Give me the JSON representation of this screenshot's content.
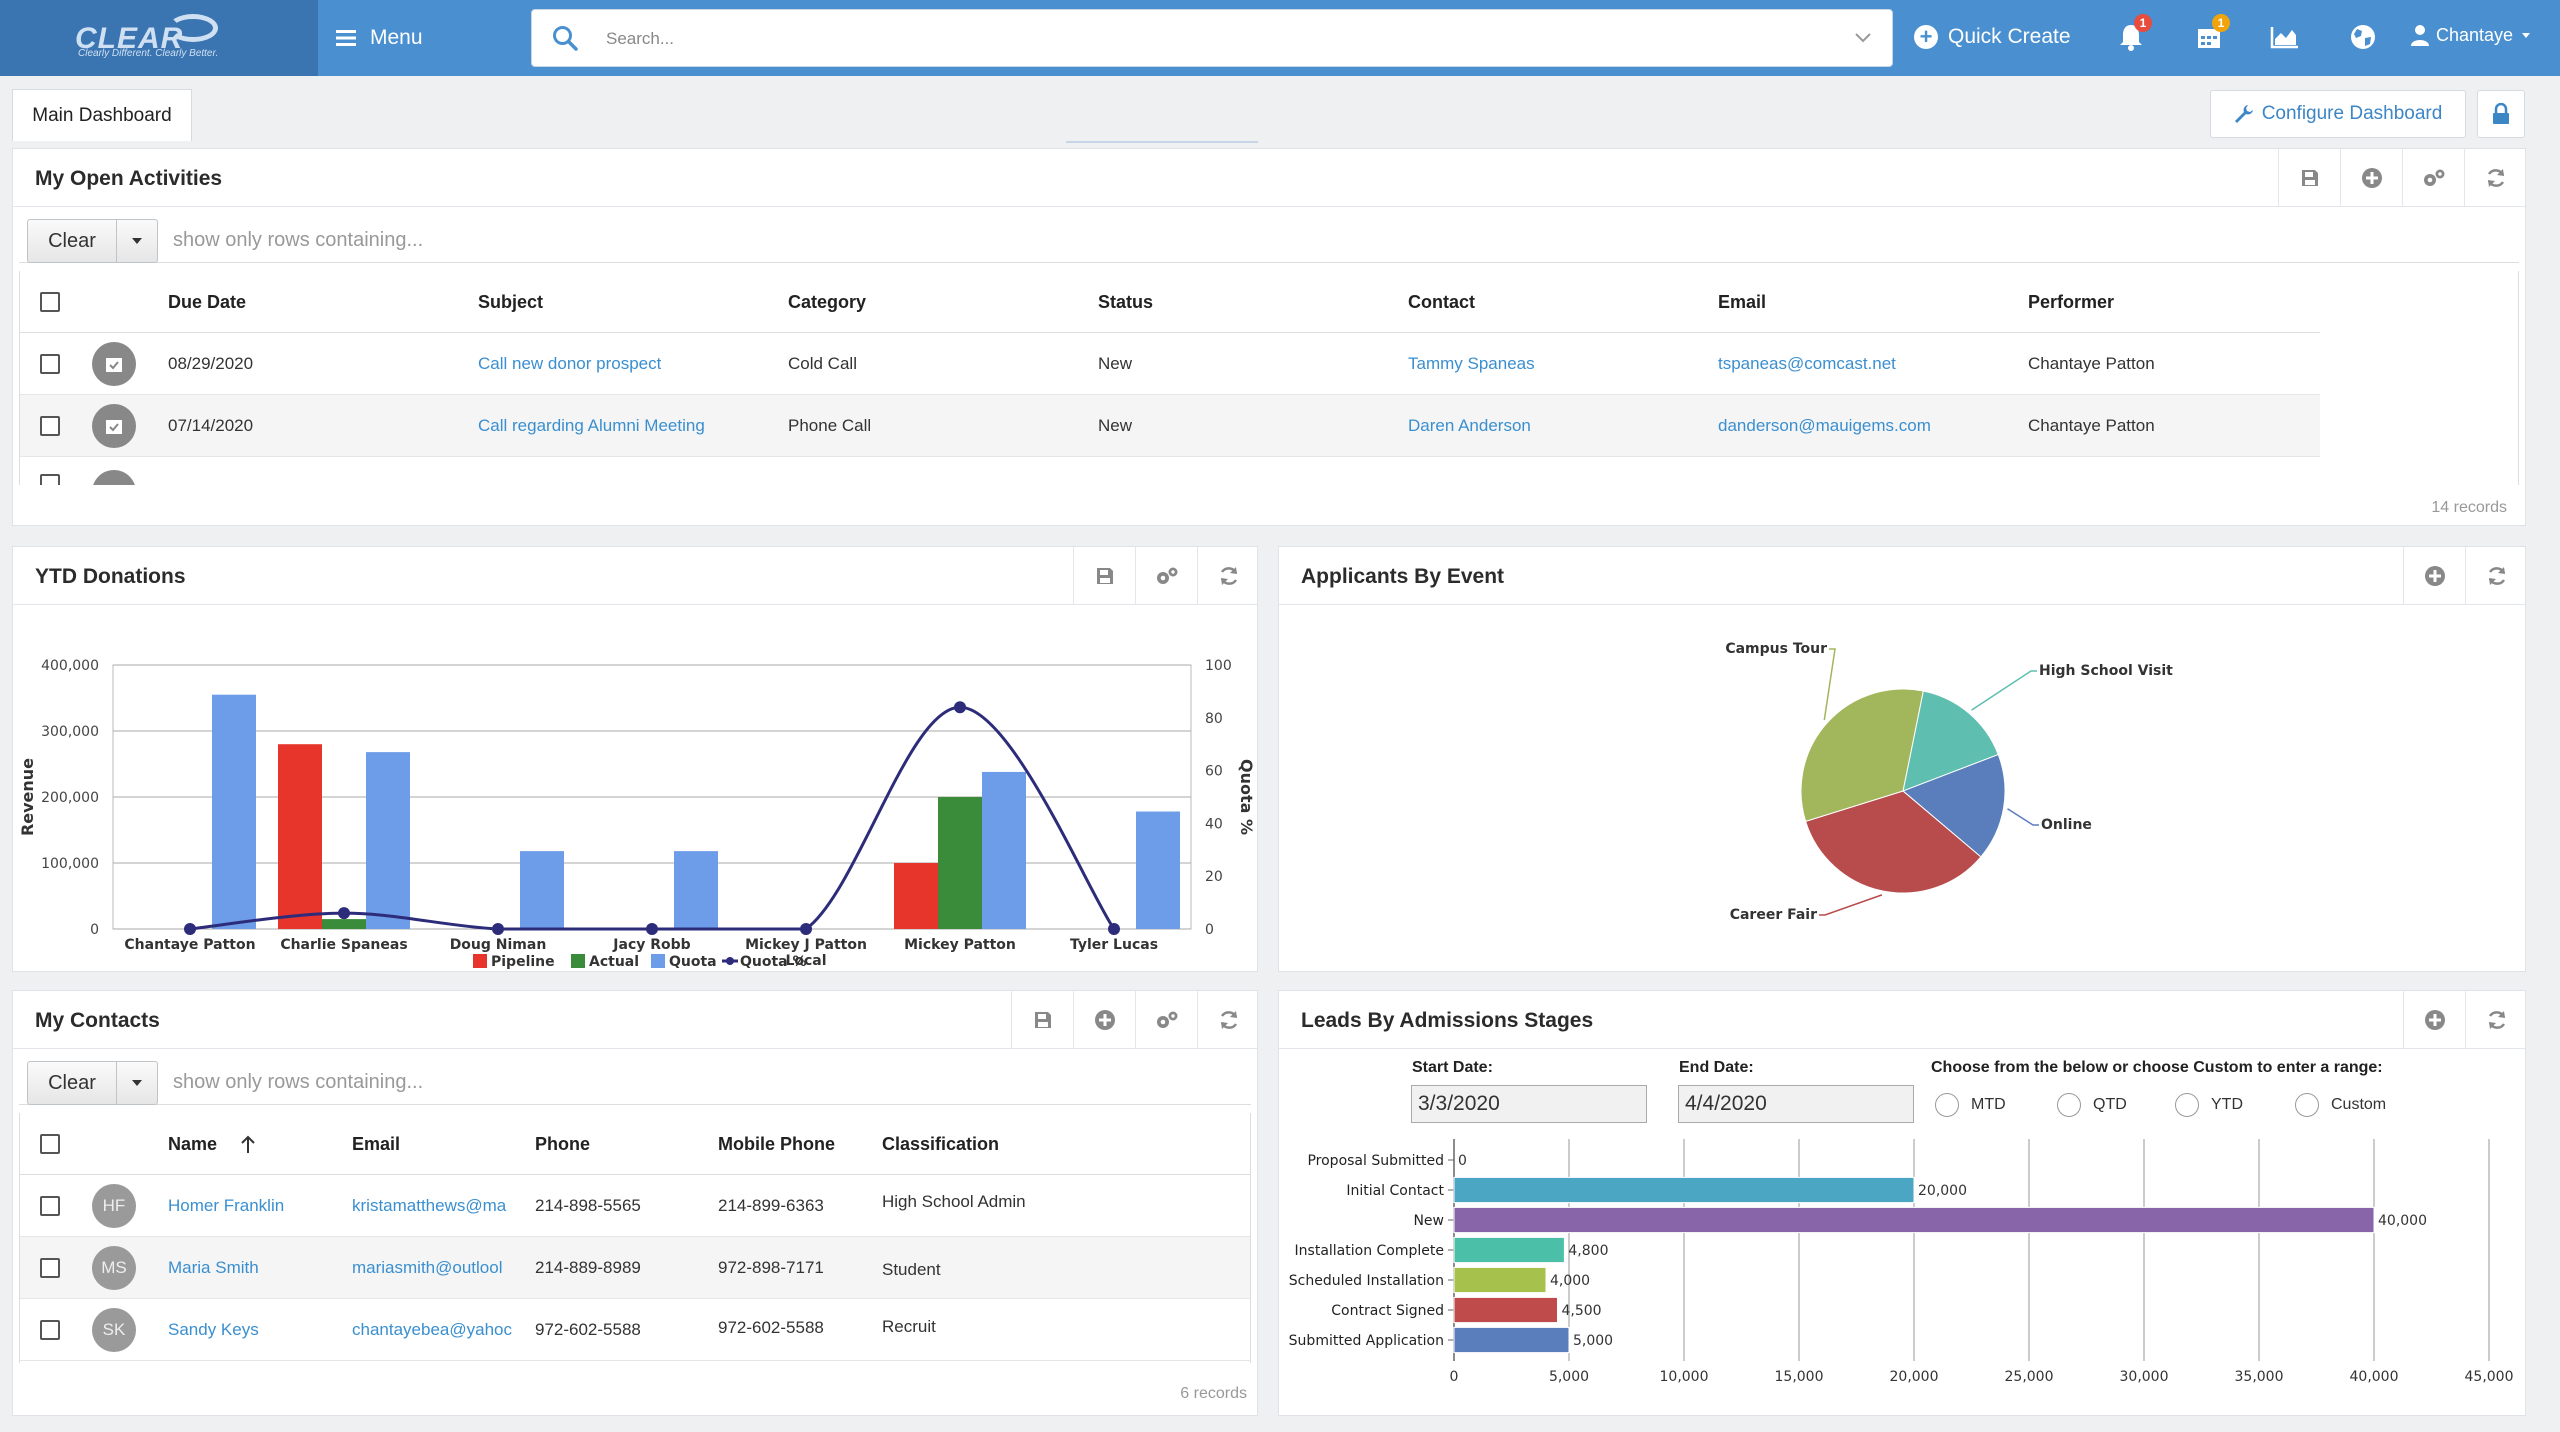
{
  "topbar": {
    "logo_text": "CLEAR",
    "logo_tagline": "Clearly Different. Clearly Better.",
    "menu_label": "Menu",
    "search_placeholder": "Search...",
    "quick_create_label": "Quick Create",
    "notifications_count": "1",
    "calendar_count": "1",
    "user_name": "Chantaye",
    "colors": {
      "bar": "#4a8fd0",
      "logo_bg": "#3a74b1",
      "notify_badge": "#e74c3c",
      "calendar_badge": "#f0a30a"
    }
  },
  "tabs": {
    "main": "Main Dashboard"
  },
  "toolbar": {
    "configure_label": "Configure Dashboard"
  },
  "activities": {
    "title": "My Open Activities",
    "clear_label": "Clear",
    "filter_placeholder": "show only rows containing...",
    "columns": [
      "Due Date",
      "Subject",
      "Category",
      "Status",
      "Contact",
      "Email",
      "Performer"
    ],
    "rows": [
      {
        "due": "08/29/2020",
        "subject": "Call new donor prospect",
        "category": "Cold Call",
        "status": "New",
        "contact": "Tammy Spaneas",
        "email": "tspaneas@comcast.net",
        "performer": "Chantaye Patton"
      },
      {
        "due": "07/14/2020",
        "subject": "Call regarding Alumni Meeting",
        "category": "Phone Call",
        "status": "New",
        "contact": "Daren Anderson",
        "email": "danderson@mauigems.com",
        "performer": "Chantaye Patton"
      }
    ],
    "records": "14 records"
  },
  "donations": {
    "title": "YTD Donations"
  },
  "applicants": {
    "title": "Applicants By Event"
  },
  "contacts": {
    "title": "My Contacts",
    "clear_label": "Clear",
    "filter_placeholder": "show only rows containing...",
    "columns": [
      "Name",
      "Email",
      "Phone",
      "Mobile Phone",
      "Classification"
    ],
    "rows": [
      {
        "initials": "HF",
        "name": "Homer Franklin",
        "email": "kristamatthews@ma",
        "phone": "214-898-5565",
        "mobile": "214-899-6363",
        "class": "High School Admin"
      },
      {
        "initials": "MS",
        "name": "Maria Smith",
        "email": "mariasmith@outlool",
        "phone": "214-889-8989",
        "mobile": "972-898-7171",
        "class": "Student"
      },
      {
        "initials": "SK",
        "name": "Sandy Keys",
        "email": "chantayebea@yahoc",
        "phone": "972-602-5588",
        "mobile": "972-602-5588",
        "class": "Recruit"
      }
    ],
    "records": "6 records"
  },
  "leads": {
    "title": "Leads By Admissions Stages",
    "start_label": "Start Date:",
    "start_value": "3/3/2020",
    "end_label": "End Date:",
    "end_value": "4/4/2020",
    "range_label": "Choose from the below or choose Custom to enter a range:",
    "range_options": [
      "MTD",
      "QTD",
      "YTD",
      "Custom"
    ]
  },
  "chart_data": [
    {
      "type": "bar",
      "title": "",
      "categories": [
        "Chantaye Patton",
        "Charlie Spaneas",
        "Doug Niman",
        "Jacy Robb",
        "Mickey J Patton Local",
        "Mickey Patton",
        "Tyler Lucas"
      ],
      "series": [
        {
          "name": "Pipeline",
          "color": "#e8352b",
          "values": [
            0,
            280000,
            0,
            0,
            0,
            100000,
            0
          ]
        },
        {
          "name": "Actual",
          "color": "#3a8c3a",
          "values": [
            0,
            15000,
            0,
            0,
            0,
            200000,
            0
          ]
        },
        {
          "name": "Quota",
          "color": "#6d9ce8",
          "values": [
            355000,
            268000,
            118000,
            118000,
            0,
            238000,
            178000
          ]
        },
        {
          "name": "Quota %",
          "color": "#2c2c7a",
          "type": "line",
          "axis": "right",
          "values": [
            0,
            6,
            0,
            0,
            0,
            84,
            0
          ]
        }
      ],
      "xlabel": "",
      "ylabel": "Revenue",
      "y2label": "Quota %",
      "ylim": [
        0,
        400000
      ],
      "y2lim": [
        0,
        100
      ],
      "yticks": [
        "0",
        "100,000",
        "200,000",
        "300,000",
        "400,000"
      ],
      "y2ticks": [
        "0",
        "20",
        "40",
        "60",
        "80",
        "100"
      ],
      "legend": "bottom",
      "grid": true
    },
    {
      "type": "pie",
      "title": "",
      "slices": [
        {
          "label": "High School Visit",
          "value": 16,
          "color": "#5ebfb0"
        },
        {
          "label": "Online",
          "value": 17,
          "color": "#5a7ebc"
        },
        {
          "label": "Career Fair",
          "value": 34,
          "color": "#b84b4b"
        },
        {
          "label": "Campus Tour",
          "value": 33,
          "color": "#a2b65c"
        }
      ]
    },
    {
      "type": "bar",
      "orientation": "horizontal",
      "title": "",
      "categories": [
        "Proposal Submitted",
        "Initial Contact",
        "New",
        "Installation Complete",
        "Scheduled Installation",
        "Contract Signed",
        "Submitted Application"
      ],
      "values": [
        0,
        20000,
        40000,
        4800,
        4000,
        4500,
        5000
      ],
      "value_labels": [
        "0",
        "20,000",
        "40,000",
        "4,800",
        "4,000",
        "4,500",
        "5,000"
      ],
      "colors": [
        "#4aa6c3",
        "#4aa6c3",
        "#8865a8",
        "#4cbfa8",
        "#a6c24c",
        "#c04b4b",
        "#5a7ebc"
      ],
      "xlim": [
        0,
        45000
      ],
      "xticks": [
        "0",
        "5,000",
        "10,000",
        "15,000",
        "20,000",
        "25,000",
        "30,000",
        "35,000",
        "40,000",
        "45,000"
      ],
      "grid": true
    }
  ]
}
